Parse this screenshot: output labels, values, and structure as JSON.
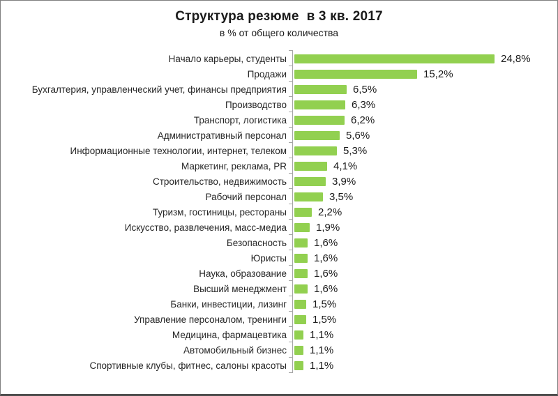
{
  "chart": {
    "title": "Структура резюме  в 3 кв. 2017",
    "subtitle": "в % от общего количества"
  },
  "chart_data": {
    "type": "bar",
    "orientation": "horizontal",
    "title": "Структура резюме  в 3 кв. 2017",
    "subtitle": "в % от общего количества",
    "xlabel": "",
    "ylabel": "",
    "xlim": [
      0,
      25
    ],
    "grid": false,
    "legend": false,
    "bar_color": "#92d050",
    "axis_color": "#a6a6a6",
    "categories": [
      "Начало карьеры, студенты",
      "Продажи",
      "Бухгалтерия, управленческий учет, финансы предприятия",
      "Производство",
      "Транспорт, логистика",
      "Административный персонал",
      "Информационные технологии, интернет, телеком",
      "Маркетинг, реклама, PR",
      "Строительство, недвижимость",
      "Рабочий персонал",
      "Туризм, гостиницы, рестораны",
      "Искусство, развлечения, масс-медиа",
      "Безопасность",
      "Юристы",
      "Наука, образование",
      "Высший менеджмент",
      "Банки, инвестиции, лизинг",
      "Управление персоналом, тренинги",
      "Медицина, фармацевтика",
      "Автомобильный бизнес",
      "Спортивные клубы, фитнес, салоны красоты"
    ],
    "values": [
      24.8,
      15.2,
      6.5,
      6.3,
      6.2,
      5.6,
      5.3,
      4.1,
      3.9,
      3.5,
      2.2,
      1.9,
      1.6,
      1.6,
      1.6,
      1.6,
      1.5,
      1.5,
      1.1,
      1.1,
      1.1
    ],
    "value_labels": [
      "24,8%",
      "15,2%",
      "6,5%",
      "6,3%",
      "6,2%",
      "5,6%",
      "5,3%",
      "4,1%",
      "3,9%",
      "3,5%",
      "2,2%",
      "1,9%",
      "1,6%",
      "1,6%",
      "1,6%",
      "1,6%",
      "1,5%",
      "1,5%",
      "1,1%",
      "1,1%",
      "1,1%"
    ]
  }
}
